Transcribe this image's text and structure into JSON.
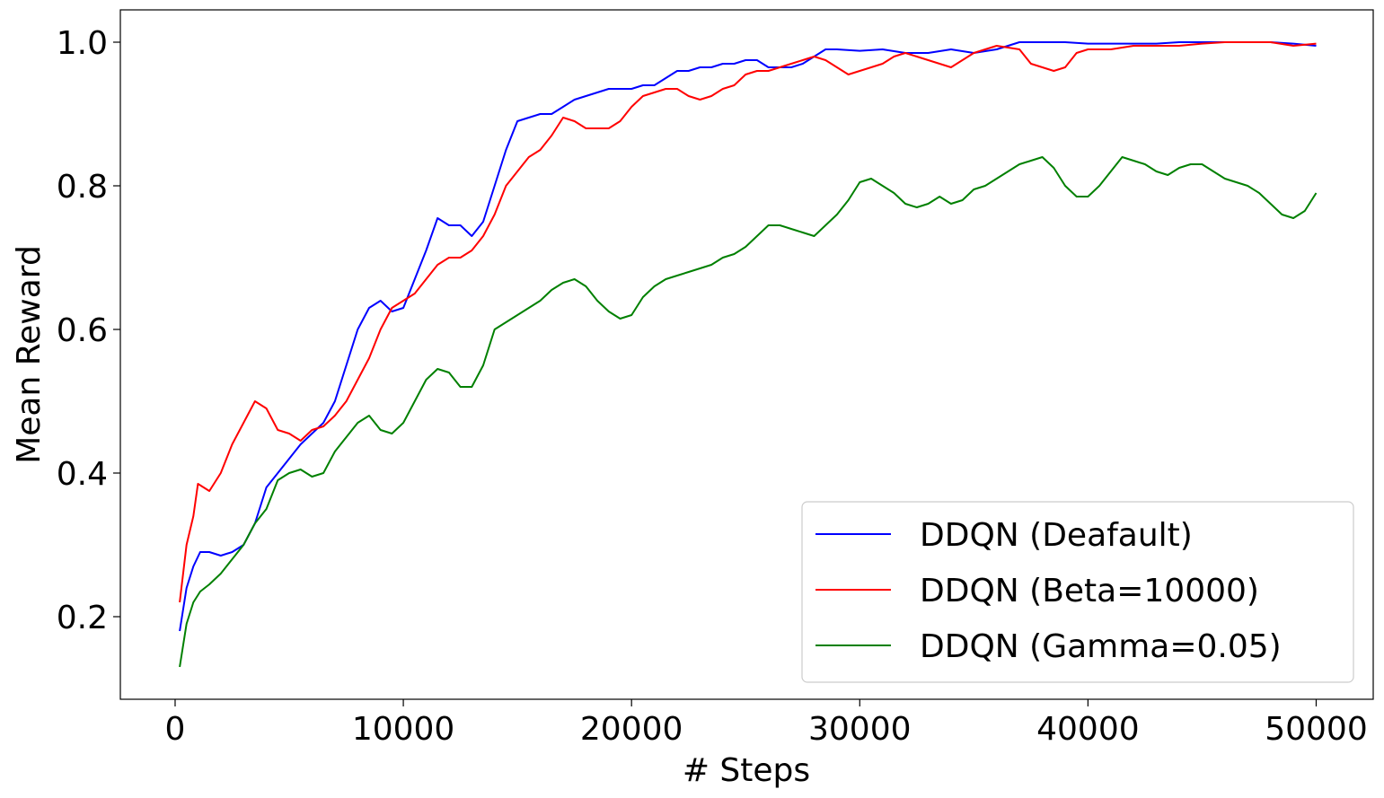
{
  "chart_data": {
    "type": "line",
    "title": "",
    "xlabel": "# Steps",
    "ylabel": "Mean Reward",
    "xlim": [
      -2400,
      52500
    ],
    "ylim": [
      0.085,
      1.045
    ],
    "xticks": [
      0,
      10000,
      20000,
      30000,
      40000,
      50000
    ],
    "xtick_labels": [
      "0",
      "10000",
      "20000",
      "30000",
      "40000",
      "50000"
    ],
    "yticks": [
      0.2,
      0.4,
      0.6,
      0.8,
      1.0
    ],
    "ytick_labels": [
      "0.2",
      "0.4",
      "0.6",
      "0.8",
      "1.0"
    ],
    "grid": false,
    "legend_position": "lower-right",
    "series": [
      {
        "name": "DDQN (Deafault)",
        "color": "#0000ff",
        "points": [
          [
            200,
            0.18
          ],
          [
            500,
            0.24
          ],
          [
            800,
            0.27
          ],
          [
            1100,
            0.29
          ],
          [
            1500,
            0.29
          ],
          [
            2000,
            0.285
          ],
          [
            2500,
            0.29
          ],
          [
            3000,
            0.3
          ],
          [
            3500,
            0.33
          ],
          [
            4000,
            0.38
          ],
          [
            4500,
            0.4
          ],
          [
            5000,
            0.42
          ],
          [
            5500,
            0.44
          ],
          [
            6000,
            0.455
          ],
          [
            6500,
            0.47
          ],
          [
            7000,
            0.5
          ],
          [
            7500,
            0.55
          ],
          [
            8000,
            0.6
          ],
          [
            8500,
            0.63
          ],
          [
            9000,
            0.64
          ],
          [
            9500,
            0.625
          ],
          [
            10000,
            0.63
          ],
          [
            10500,
            0.67
          ],
          [
            11000,
            0.71
          ],
          [
            11500,
            0.755
          ],
          [
            12000,
            0.745
          ],
          [
            12500,
            0.745
          ],
          [
            13000,
            0.73
          ],
          [
            13500,
            0.75
          ],
          [
            14000,
            0.8
          ],
          [
            14500,
            0.85
          ],
          [
            15000,
            0.89
          ],
          [
            15500,
            0.895
          ],
          [
            16000,
            0.9
          ],
          [
            16500,
            0.9
          ],
          [
            17000,
            0.91
          ],
          [
            17500,
            0.92
          ],
          [
            18000,
            0.925
          ],
          [
            18500,
            0.93
          ],
          [
            19000,
            0.935
          ],
          [
            19500,
            0.935
          ],
          [
            20000,
            0.935
          ],
          [
            20500,
            0.94
          ],
          [
            21000,
            0.94
          ],
          [
            21500,
            0.95
          ],
          [
            22000,
            0.96
          ],
          [
            22500,
            0.96
          ],
          [
            23000,
            0.965
          ],
          [
            23500,
            0.965
          ],
          [
            24000,
            0.97
          ],
          [
            24500,
            0.97
          ],
          [
            25000,
            0.975
          ],
          [
            25500,
            0.975
          ],
          [
            26000,
            0.965
          ],
          [
            26500,
            0.965
          ],
          [
            27000,
            0.965
          ],
          [
            27500,
            0.97
          ],
          [
            28000,
            0.98
          ],
          [
            28500,
            0.99
          ],
          [
            29000,
            0.99
          ],
          [
            30000,
            0.988
          ],
          [
            31000,
            0.99
          ],
          [
            32000,
            0.985
          ],
          [
            33000,
            0.985
          ],
          [
            34000,
            0.99
          ],
          [
            35000,
            0.985
          ],
          [
            36000,
            0.99
          ],
          [
            37000,
            1.0
          ],
          [
            38000,
            1.0
          ],
          [
            39000,
            1.0
          ],
          [
            40000,
            0.998
          ],
          [
            41000,
            0.998
          ],
          [
            42000,
            0.998
          ],
          [
            43000,
            0.998
          ],
          [
            44000,
            1.0
          ],
          [
            45000,
            1.0
          ],
          [
            46000,
            1.0
          ],
          [
            47000,
            1.0
          ],
          [
            48000,
            1.0
          ],
          [
            49000,
            0.998
          ],
          [
            50000,
            0.995
          ]
        ]
      },
      {
        "name": "DDQN (Beta=10000)",
        "color": "#ff0000",
        "points": [
          [
            200,
            0.22
          ],
          [
            500,
            0.3
          ],
          [
            800,
            0.34
          ],
          [
            1000,
            0.385
          ],
          [
            1500,
            0.375
          ],
          [
            2000,
            0.4
          ],
          [
            2500,
            0.44
          ],
          [
            3000,
            0.47
          ],
          [
            3500,
            0.5
          ],
          [
            4000,
            0.49
          ],
          [
            4500,
            0.46
          ],
          [
            5000,
            0.455
          ],
          [
            5500,
            0.445
          ],
          [
            6000,
            0.46
          ],
          [
            6500,
            0.465
          ],
          [
            7000,
            0.48
          ],
          [
            7500,
            0.5
          ],
          [
            8000,
            0.53
          ],
          [
            8500,
            0.56
          ],
          [
            9000,
            0.6
          ],
          [
            9500,
            0.63
          ],
          [
            10000,
            0.64
          ],
          [
            10500,
            0.65
          ],
          [
            11000,
            0.67
          ],
          [
            11500,
            0.69
          ],
          [
            12000,
            0.7
          ],
          [
            12500,
            0.7
          ],
          [
            13000,
            0.71
          ],
          [
            13500,
            0.73
          ],
          [
            14000,
            0.76
          ],
          [
            14500,
            0.8
          ],
          [
            15000,
            0.82
          ],
          [
            15500,
            0.84
          ],
          [
            16000,
            0.85
          ],
          [
            16500,
            0.87
          ],
          [
            17000,
            0.895
          ],
          [
            17500,
            0.89
          ],
          [
            18000,
            0.88
          ],
          [
            18500,
            0.88
          ],
          [
            19000,
            0.88
          ],
          [
            19500,
            0.89
          ],
          [
            20000,
            0.91
          ],
          [
            20500,
            0.925
          ],
          [
            21000,
            0.93
          ],
          [
            21500,
            0.935
          ],
          [
            22000,
            0.935
          ],
          [
            22500,
            0.925
          ],
          [
            23000,
            0.92
          ],
          [
            23500,
            0.925
          ],
          [
            24000,
            0.935
          ],
          [
            24500,
            0.94
          ],
          [
            25000,
            0.955
          ],
          [
            25500,
            0.96
          ],
          [
            26000,
            0.96
          ],
          [
            26500,
            0.965
          ],
          [
            27000,
            0.97
          ],
          [
            27500,
            0.975
          ],
          [
            28000,
            0.98
          ],
          [
            28500,
            0.975
          ],
          [
            29000,
            0.965
          ],
          [
            29500,
            0.955
          ],
          [
            30000,
            0.96
          ],
          [
            30500,
            0.965
          ],
          [
            31000,
            0.97
          ],
          [
            31500,
            0.98
          ],
          [
            32000,
            0.985
          ],
          [
            32500,
            0.98
          ],
          [
            33000,
            0.975
          ],
          [
            33500,
            0.97
          ],
          [
            34000,
            0.965
          ],
          [
            34500,
            0.975
          ],
          [
            35000,
            0.985
          ],
          [
            35500,
            0.99
          ],
          [
            36000,
            0.995
          ],
          [
            37000,
            0.99
          ],
          [
            37500,
            0.97
          ],
          [
            38000,
            0.965
          ],
          [
            38500,
            0.96
          ],
          [
            39000,
            0.965
          ],
          [
            39500,
            0.985
          ],
          [
            40000,
            0.99
          ],
          [
            41000,
            0.99
          ],
          [
            42000,
            0.995
          ],
          [
            43000,
            0.995
          ],
          [
            44000,
            0.995
          ],
          [
            45000,
            0.998
          ],
          [
            46000,
            1.0
          ],
          [
            47000,
            1.0
          ],
          [
            48000,
            1.0
          ],
          [
            49000,
            0.995
          ],
          [
            50000,
            0.998
          ]
        ]
      },
      {
        "name": "DDQN (Gamma=0.05)",
        "color": "#008000",
        "points": [
          [
            200,
            0.13
          ],
          [
            500,
            0.19
          ],
          [
            800,
            0.22
          ],
          [
            1100,
            0.235
          ],
          [
            1500,
            0.245
          ],
          [
            2000,
            0.26
          ],
          [
            2500,
            0.28
          ],
          [
            3000,
            0.3
          ],
          [
            3500,
            0.33
          ],
          [
            4000,
            0.35
          ],
          [
            4500,
            0.39
          ],
          [
            5000,
            0.4
          ],
          [
            5500,
            0.405
          ],
          [
            6000,
            0.395
          ],
          [
            6500,
            0.4
          ],
          [
            7000,
            0.43
          ],
          [
            7500,
            0.45
          ],
          [
            8000,
            0.47
          ],
          [
            8500,
            0.48
          ],
          [
            9000,
            0.46
          ],
          [
            9500,
            0.455
          ],
          [
            10000,
            0.47
          ],
          [
            10500,
            0.5
          ],
          [
            11000,
            0.53
          ],
          [
            11500,
            0.545
          ],
          [
            12000,
            0.54
          ],
          [
            12500,
            0.52
          ],
          [
            13000,
            0.52
          ],
          [
            13500,
            0.55
          ],
          [
            14000,
            0.6
          ],
          [
            14500,
            0.61
          ],
          [
            15000,
            0.62
          ],
          [
            15500,
            0.63
          ],
          [
            16000,
            0.64
          ],
          [
            16500,
            0.655
          ],
          [
            17000,
            0.665
          ],
          [
            17500,
            0.67
          ],
          [
            18000,
            0.66
          ],
          [
            18500,
            0.64
          ],
          [
            19000,
            0.625
          ],
          [
            19500,
            0.615
          ],
          [
            20000,
            0.62
          ],
          [
            20500,
            0.645
          ],
          [
            21000,
            0.66
          ],
          [
            21500,
            0.67
          ],
          [
            22000,
            0.675
          ],
          [
            22500,
            0.68
          ],
          [
            23000,
            0.685
          ],
          [
            23500,
            0.69
          ],
          [
            24000,
            0.7
          ],
          [
            24500,
            0.705
          ],
          [
            25000,
            0.715
          ],
          [
            25500,
            0.73
          ],
          [
            26000,
            0.745
          ],
          [
            26500,
            0.745
          ],
          [
            27000,
            0.74
          ],
          [
            27500,
            0.735
          ],
          [
            28000,
            0.73
          ],
          [
            28500,
            0.745
          ],
          [
            29000,
            0.76
          ],
          [
            29500,
            0.78
          ],
          [
            30000,
            0.805
          ],
          [
            30500,
            0.81
          ],
          [
            31000,
            0.8
          ],
          [
            31500,
            0.79
          ],
          [
            32000,
            0.775
          ],
          [
            32500,
            0.77
          ],
          [
            33000,
            0.775
          ],
          [
            33500,
            0.785
          ],
          [
            34000,
            0.775
          ],
          [
            34500,
            0.78
          ],
          [
            35000,
            0.795
          ],
          [
            35500,
            0.8
          ],
          [
            36000,
            0.81
          ],
          [
            36500,
            0.82
          ],
          [
            37000,
            0.83
          ],
          [
            37500,
            0.835
          ],
          [
            38000,
            0.84
          ],
          [
            38500,
            0.825
          ],
          [
            39000,
            0.8
          ],
          [
            39500,
            0.785
          ],
          [
            40000,
            0.785
          ],
          [
            40500,
            0.8
          ],
          [
            41000,
            0.82
          ],
          [
            41500,
            0.84
          ],
          [
            42000,
            0.835
          ],
          [
            42500,
            0.83
          ],
          [
            43000,
            0.82
          ],
          [
            43500,
            0.815
          ],
          [
            44000,
            0.825
          ],
          [
            44500,
            0.83
          ],
          [
            45000,
            0.83
          ],
          [
            45500,
            0.82
          ],
          [
            46000,
            0.81
          ],
          [
            46500,
            0.805
          ],
          [
            47000,
            0.8
          ],
          [
            47500,
            0.79
          ],
          [
            48000,
            0.775
          ],
          [
            48500,
            0.76
          ],
          [
            49000,
            0.755
          ],
          [
            49500,
            0.765
          ],
          [
            50000,
            0.79
          ]
        ]
      }
    ]
  }
}
